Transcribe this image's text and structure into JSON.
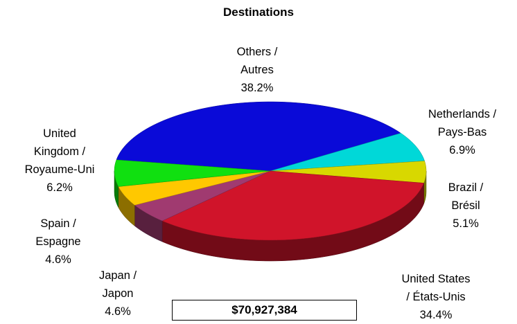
{
  "chart_data": {
    "type": "pie",
    "title": "Destinations",
    "categories": [
      "Others /\nAutres",
      "Netherlands /\nPays-Bas",
      "Brazil /\nBrésil",
      "United States\n/ États-Unis",
      "Japan /\nJapon",
      "Spain /\nEspagne",
      "United\nKingdom /\nRoyaume-Uni"
    ],
    "values": [
      38.2,
      6.9,
      5.1,
      34.4,
      4.6,
      4.6,
      6.2
    ],
    "value_labels": [
      "38.2%",
      "6.9%",
      "5.1%",
      "34.4%",
      "4.6%",
      "4.6%",
      "6.2%"
    ],
    "colors": [
      "#0a0ad8",
      "#00d8d8",
      "#d8d800",
      "#d0142a",
      "#a03a70",
      "#ffc800",
      "#10e010"
    ],
    "total": "$70,927,384",
    "three_d": true
  }
}
